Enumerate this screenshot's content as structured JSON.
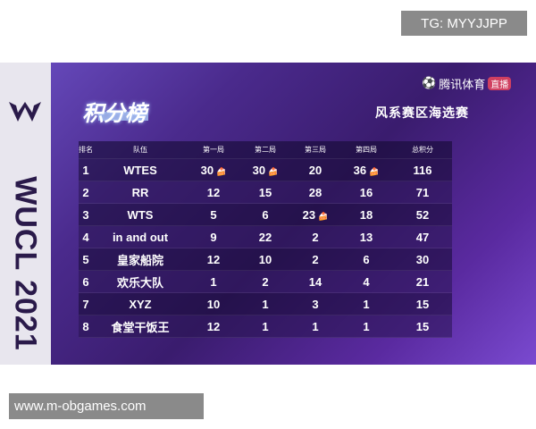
{
  "watermark_top": "TG: MYYJJPP",
  "watermark_bottom": "www.m-obgames.com",
  "side_banner": "WUCL 2021",
  "title": "积分榜",
  "broadcaster": "腾讯体育",
  "broadcaster_badge": "直播",
  "subtitle": "风系赛区海选赛",
  "headers": [
    "排名",
    "队伍",
    "第一局",
    "第二局",
    "第三局",
    "第四局",
    "总积分"
  ],
  "rows": [
    {
      "rank": "1",
      "team": "WTES",
      "g": [
        "30",
        "30",
        "20",
        "36"
      ],
      "cake": [
        true,
        true,
        false,
        true
      ],
      "total": "116"
    },
    {
      "rank": "2",
      "team": "RR",
      "g": [
        "12",
        "15",
        "28",
        "16"
      ],
      "cake": [
        false,
        false,
        false,
        false
      ],
      "total": "71"
    },
    {
      "rank": "3",
      "team": "WTS",
      "g": [
        "5",
        "6",
        "23",
        "18"
      ],
      "cake": [
        false,
        false,
        true,
        false
      ],
      "total": "52"
    },
    {
      "rank": "4",
      "team": "in and out",
      "g": [
        "9",
        "22",
        "2",
        "13"
      ],
      "cake": [
        false,
        false,
        false,
        false
      ],
      "total": "47"
    },
    {
      "rank": "5",
      "team": "皇家船院",
      "g": [
        "12",
        "10",
        "2",
        "6"
      ],
      "cake": [
        false,
        false,
        false,
        false
      ],
      "total": "30"
    },
    {
      "rank": "6",
      "team": "欢乐大队",
      "g": [
        "1",
        "2",
        "14",
        "4"
      ],
      "cake": [
        false,
        false,
        false,
        false
      ],
      "total": "21"
    },
    {
      "rank": "7",
      "team": "XYZ",
      "g": [
        "10",
        "1",
        "3",
        "1"
      ],
      "cake": [
        false,
        false,
        false,
        false
      ],
      "total": "15"
    },
    {
      "rank": "8",
      "team": "食堂干饭王",
      "g": [
        "12",
        "1",
        "1",
        "1"
      ],
      "cake": [
        false,
        false,
        false,
        false
      ],
      "total": "15"
    }
  ]
}
